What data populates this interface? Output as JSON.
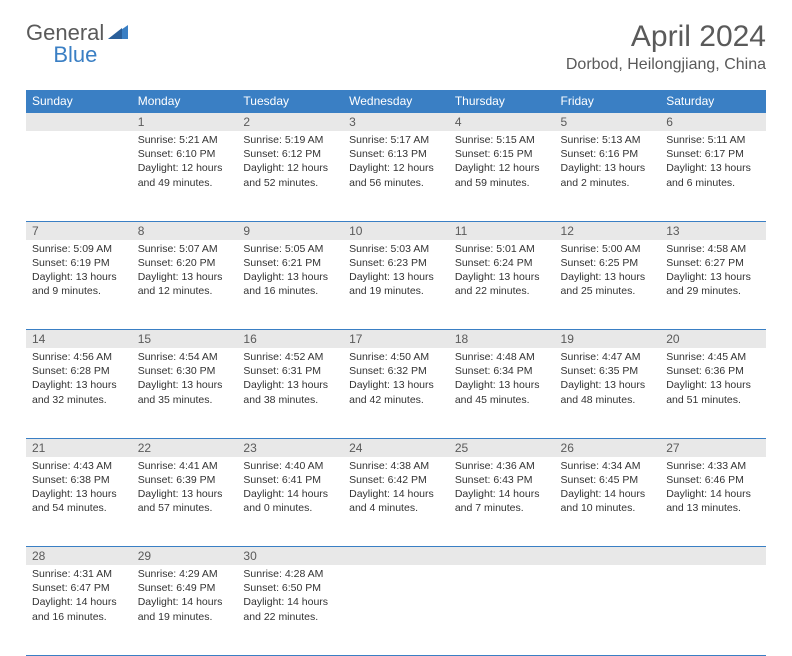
{
  "logo": {
    "general": "General",
    "blue": "Blue"
  },
  "title": "April 2024",
  "location": "Dorbod, Heilongjiang, China",
  "header_color": "#3a7fc4",
  "daynum_bg": "#e8e8e8",
  "text_color": "#5a5a5a",
  "weekdays": [
    "Sunday",
    "Monday",
    "Tuesday",
    "Wednesday",
    "Thursday",
    "Friday",
    "Saturday"
  ],
  "first_weekday_index": 1,
  "days": [
    {
      "n": 1,
      "sunrise": "5:21 AM",
      "sunset": "6:10 PM",
      "daylight": "12 hours and 49 minutes."
    },
    {
      "n": 2,
      "sunrise": "5:19 AM",
      "sunset": "6:12 PM",
      "daylight": "12 hours and 52 minutes."
    },
    {
      "n": 3,
      "sunrise": "5:17 AM",
      "sunset": "6:13 PM",
      "daylight": "12 hours and 56 minutes."
    },
    {
      "n": 4,
      "sunrise": "5:15 AM",
      "sunset": "6:15 PM",
      "daylight": "12 hours and 59 minutes."
    },
    {
      "n": 5,
      "sunrise": "5:13 AM",
      "sunset": "6:16 PM",
      "daylight": "13 hours and 2 minutes."
    },
    {
      "n": 6,
      "sunrise": "5:11 AM",
      "sunset": "6:17 PM",
      "daylight": "13 hours and 6 minutes."
    },
    {
      "n": 7,
      "sunrise": "5:09 AM",
      "sunset": "6:19 PM",
      "daylight": "13 hours and 9 minutes."
    },
    {
      "n": 8,
      "sunrise": "5:07 AM",
      "sunset": "6:20 PM",
      "daylight": "13 hours and 12 minutes."
    },
    {
      "n": 9,
      "sunrise": "5:05 AM",
      "sunset": "6:21 PM",
      "daylight": "13 hours and 16 minutes."
    },
    {
      "n": 10,
      "sunrise": "5:03 AM",
      "sunset": "6:23 PM",
      "daylight": "13 hours and 19 minutes."
    },
    {
      "n": 11,
      "sunrise": "5:01 AM",
      "sunset": "6:24 PM",
      "daylight": "13 hours and 22 minutes."
    },
    {
      "n": 12,
      "sunrise": "5:00 AM",
      "sunset": "6:25 PM",
      "daylight": "13 hours and 25 minutes."
    },
    {
      "n": 13,
      "sunrise": "4:58 AM",
      "sunset": "6:27 PM",
      "daylight": "13 hours and 29 minutes."
    },
    {
      "n": 14,
      "sunrise": "4:56 AM",
      "sunset": "6:28 PM",
      "daylight": "13 hours and 32 minutes."
    },
    {
      "n": 15,
      "sunrise": "4:54 AM",
      "sunset": "6:30 PM",
      "daylight": "13 hours and 35 minutes."
    },
    {
      "n": 16,
      "sunrise": "4:52 AM",
      "sunset": "6:31 PM",
      "daylight": "13 hours and 38 minutes."
    },
    {
      "n": 17,
      "sunrise": "4:50 AM",
      "sunset": "6:32 PM",
      "daylight": "13 hours and 42 minutes."
    },
    {
      "n": 18,
      "sunrise": "4:48 AM",
      "sunset": "6:34 PM",
      "daylight": "13 hours and 45 minutes."
    },
    {
      "n": 19,
      "sunrise": "4:47 AM",
      "sunset": "6:35 PM",
      "daylight": "13 hours and 48 minutes."
    },
    {
      "n": 20,
      "sunrise": "4:45 AM",
      "sunset": "6:36 PM",
      "daylight": "13 hours and 51 minutes."
    },
    {
      "n": 21,
      "sunrise": "4:43 AM",
      "sunset": "6:38 PM",
      "daylight": "13 hours and 54 minutes."
    },
    {
      "n": 22,
      "sunrise": "4:41 AM",
      "sunset": "6:39 PM",
      "daylight": "13 hours and 57 minutes."
    },
    {
      "n": 23,
      "sunrise": "4:40 AM",
      "sunset": "6:41 PM",
      "daylight": "14 hours and 0 minutes."
    },
    {
      "n": 24,
      "sunrise": "4:38 AM",
      "sunset": "6:42 PM",
      "daylight": "14 hours and 4 minutes."
    },
    {
      "n": 25,
      "sunrise": "4:36 AM",
      "sunset": "6:43 PM",
      "daylight": "14 hours and 7 minutes."
    },
    {
      "n": 26,
      "sunrise": "4:34 AM",
      "sunset": "6:45 PM",
      "daylight": "14 hours and 10 minutes."
    },
    {
      "n": 27,
      "sunrise": "4:33 AM",
      "sunset": "6:46 PM",
      "daylight": "14 hours and 13 minutes."
    },
    {
      "n": 28,
      "sunrise": "4:31 AM",
      "sunset": "6:47 PM",
      "daylight": "14 hours and 16 minutes."
    },
    {
      "n": 29,
      "sunrise": "4:29 AM",
      "sunset": "6:49 PM",
      "daylight": "14 hours and 19 minutes."
    },
    {
      "n": 30,
      "sunrise": "4:28 AM",
      "sunset": "6:50 PM",
      "daylight": "14 hours and 22 minutes."
    }
  ],
  "labels": {
    "sunrise": "Sunrise: ",
    "sunset": "Sunset: ",
    "daylight": "Daylight: "
  }
}
